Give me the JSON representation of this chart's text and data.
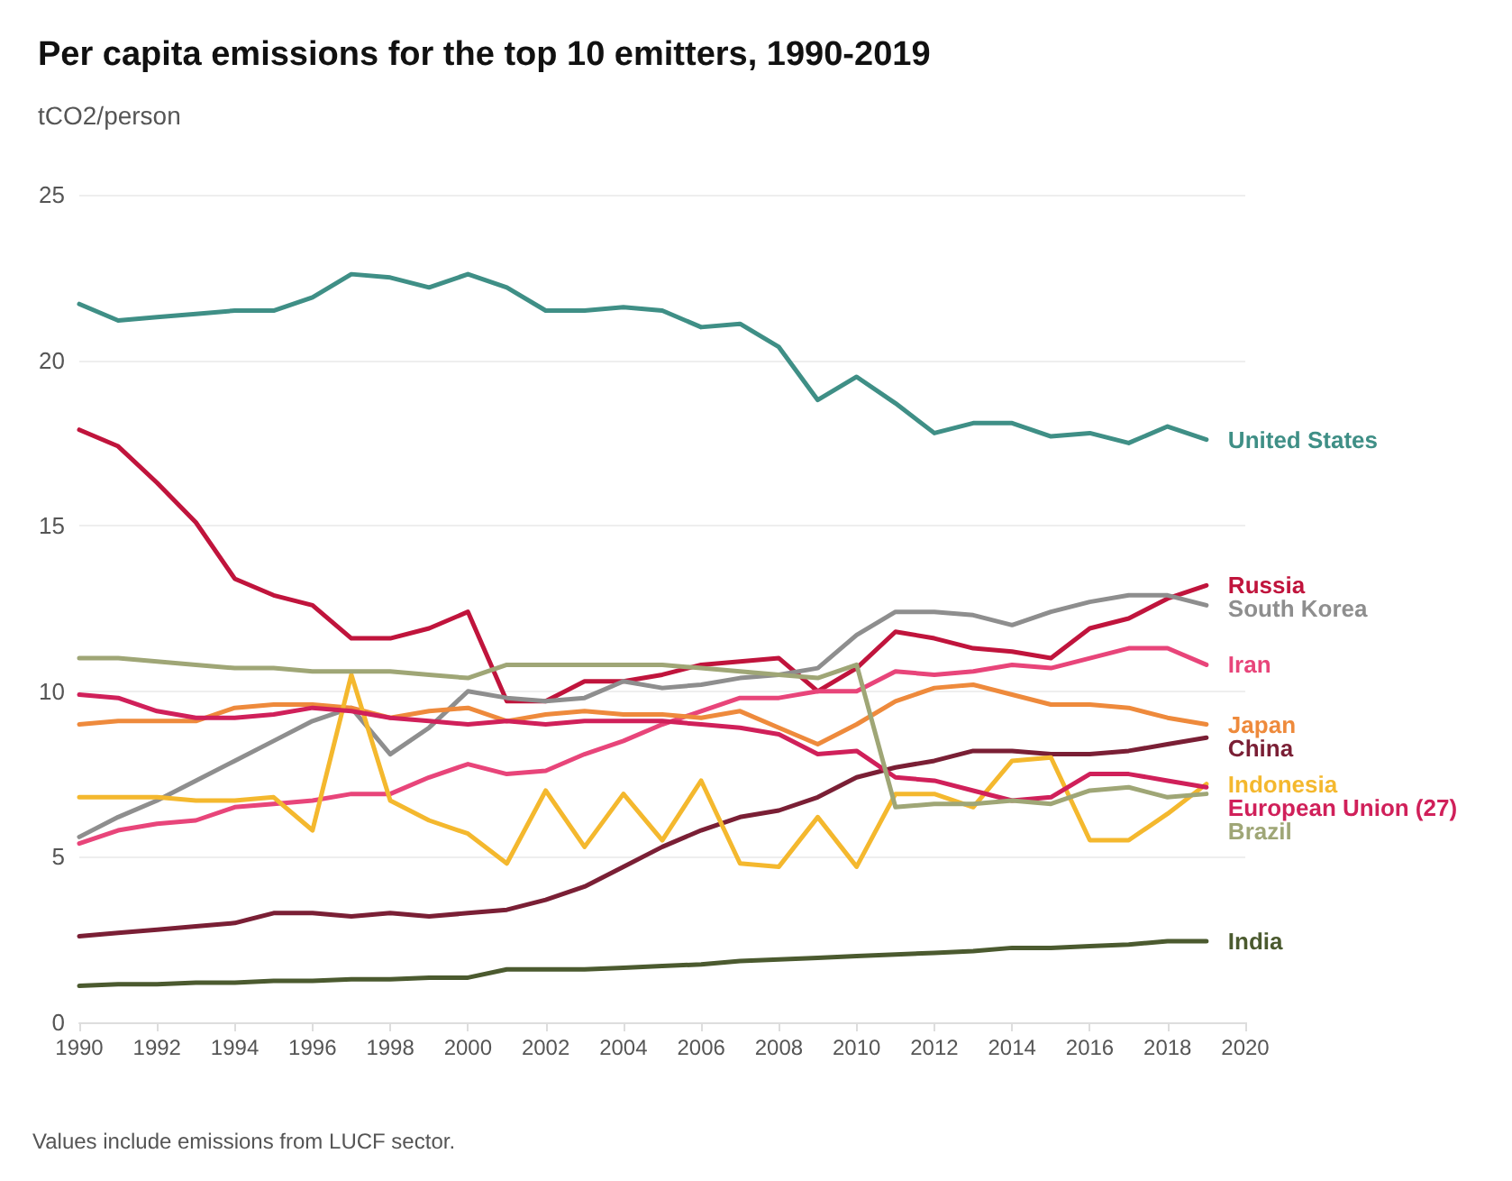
{
  "chart_data": {
    "type": "line",
    "title": "Per capita emissions for the top 10 emitters, 1990-2019",
    "ylabel": "tCO2/person",
    "annotations": [
      "Values include emissions from LUCF sector."
    ],
    "x": [
      1990,
      1991,
      1992,
      1993,
      1994,
      1995,
      1996,
      1997,
      1998,
      1999,
      2000,
      2001,
      2002,
      2003,
      2004,
      2005,
      2006,
      2007,
      2008,
      2009,
      2010,
      2011,
      2012,
      2013,
      2014,
      2015,
      2016,
      2017,
      2018,
      2019
    ],
    "xlim": [
      1990,
      2020
    ],
    "xticks": [
      1990,
      1992,
      1994,
      1996,
      1998,
      2000,
      2002,
      2004,
      2006,
      2008,
      2010,
      2012,
      2014,
      2016,
      2018,
      2020
    ],
    "ylim": [
      0,
      25
    ],
    "yticks": [
      0,
      5,
      10,
      15,
      20,
      25
    ],
    "grid": "y",
    "legend": false,
    "marker": "none",
    "line_style": "solid",
    "series": [
      {
        "name": "United States",
        "color": "#3f8f86",
        "values": [
          21.7,
          21.2,
          21.3,
          21.4,
          21.5,
          21.5,
          21.9,
          22.6,
          22.5,
          22.2,
          22.6,
          22.2,
          21.5,
          21.5,
          21.6,
          21.5,
          21.0,
          21.1,
          20.4,
          18.8,
          19.5,
          18.7,
          17.8,
          18.1,
          18.1,
          17.7,
          17.8,
          17.5,
          18.0,
          17.6
        ]
      },
      {
        "name": "Russia",
        "color": "#c0143c",
        "values": [
          17.9,
          17.4,
          16.3,
          15.1,
          13.4,
          12.9,
          12.6,
          11.6,
          11.6,
          11.9,
          12.4,
          9.7,
          9.7,
          10.3,
          10.3,
          10.5,
          10.8,
          10.9,
          11.0,
          10.0,
          10.7,
          11.8,
          11.6,
          11.3,
          11.2,
          11.0,
          11.9,
          12.2,
          12.8,
          13.2
        ]
      },
      {
        "name": "South Korea",
        "color": "#8e8e8e",
        "values": [
          5.6,
          6.2,
          6.7,
          7.3,
          7.9,
          8.5,
          9.1,
          9.5,
          8.1,
          8.9,
          10.0,
          9.8,
          9.7,
          9.8,
          10.3,
          10.1,
          10.2,
          10.4,
          10.5,
          10.7,
          11.7,
          12.4,
          12.4,
          12.3,
          12.0,
          12.4,
          12.7,
          12.9,
          12.9,
          12.6
        ]
      },
      {
        "name": "Iran",
        "color": "#e8457a",
        "values": [
          5.4,
          5.8,
          6.0,
          6.1,
          6.5,
          6.6,
          6.7,
          6.9,
          6.9,
          7.4,
          7.8,
          7.5,
          7.6,
          8.1,
          8.5,
          9.0,
          9.4,
          9.8,
          9.8,
          10.0,
          10.0,
          10.6,
          10.5,
          10.6,
          10.8,
          10.7,
          11.0,
          11.3,
          11.3,
          10.8
        ]
      },
      {
        "name": "Japan",
        "color": "#ee8a3c",
        "values": [
          9.0,
          9.1,
          9.1,
          9.1,
          9.5,
          9.6,
          9.6,
          9.5,
          9.2,
          9.4,
          9.5,
          9.1,
          9.3,
          9.4,
          9.3,
          9.3,
          9.2,
          9.4,
          8.9,
          8.4,
          9.0,
          9.7,
          10.1,
          10.2,
          9.9,
          9.6,
          9.6,
          9.5,
          9.2,
          9.0
        ]
      },
      {
        "name": "China",
        "color": "#7a1f35",
        "values": [
          2.6,
          2.7,
          2.8,
          2.9,
          3.0,
          3.3,
          3.3,
          3.2,
          3.3,
          3.2,
          3.3,
          3.4,
          3.7,
          4.1,
          4.7,
          5.3,
          5.8,
          6.2,
          6.4,
          6.8,
          7.4,
          7.7,
          7.9,
          8.2,
          8.2,
          8.1,
          8.1,
          8.2,
          8.4,
          8.6
        ]
      },
      {
        "name": "Indonesia",
        "color": "#f4b82e",
        "values": [
          6.8,
          6.8,
          6.8,
          6.7,
          6.7,
          6.8,
          5.8,
          10.5,
          6.7,
          6.1,
          5.7,
          4.8,
          7.0,
          5.3,
          6.9,
          5.5,
          7.3,
          4.8,
          4.7,
          6.2,
          4.7,
          6.9,
          6.9,
          6.5,
          7.9,
          8.0,
          5.5,
          5.5,
          6.3,
          7.2
        ]
      },
      {
        "name": "European Union (27)",
        "color": "#d0205a",
        "values": [
          9.9,
          9.8,
          9.4,
          9.2,
          9.2,
          9.3,
          9.5,
          9.4,
          9.2,
          9.1,
          9.0,
          9.1,
          9.0,
          9.1,
          9.1,
          9.1,
          9.0,
          8.9,
          8.7,
          8.1,
          8.2,
          7.4,
          7.3,
          7.0,
          6.7,
          6.8,
          7.5,
          7.5,
          7.3,
          7.1
        ]
      },
      {
        "name": "Brazil",
        "color": "#9fa676",
        "values": [
          11.0,
          11.0,
          10.9,
          10.8,
          10.7,
          10.7,
          10.6,
          10.6,
          10.6,
          10.5,
          10.4,
          10.8,
          10.8,
          10.8,
          10.8,
          10.8,
          10.7,
          10.6,
          10.5,
          10.4,
          10.8,
          6.5,
          6.6,
          6.6,
          6.7,
          6.6,
          7.0,
          7.1,
          6.8,
          6.9
        ]
      },
      {
        "name": "India",
        "color": "#4b5a2f",
        "values": [
          1.1,
          1.15,
          1.15,
          1.2,
          1.2,
          1.25,
          1.25,
          1.3,
          1.3,
          1.35,
          1.35,
          1.6,
          1.6,
          1.6,
          1.65,
          1.7,
          1.75,
          1.85,
          1.9,
          1.95,
          2.0,
          2.05,
          2.1,
          2.15,
          2.25,
          2.25,
          2.3,
          2.35,
          2.45,
          2.45
        ]
      }
    ]
  }
}
